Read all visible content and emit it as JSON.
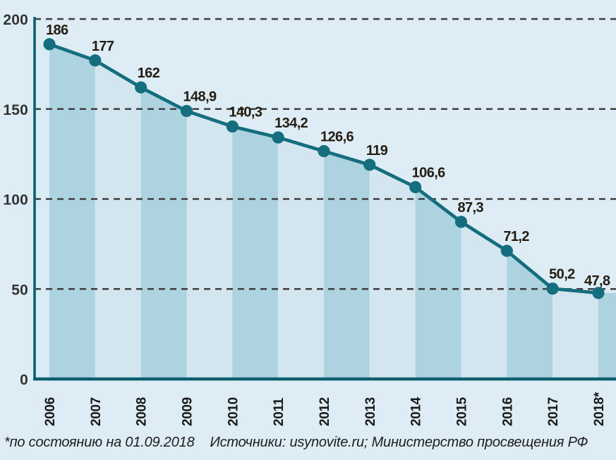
{
  "chart_data": {
    "type": "area",
    "title": "",
    "categories": [
      "2006",
      "2007",
      "2008",
      "2009",
      "2010",
      "2011",
      "2012",
      "2013",
      "2014",
      "2015",
      "2016",
      "2017",
      "2018*"
    ],
    "values": [
      186,
      177,
      162,
      148.9,
      140.3,
      134.2,
      126.6,
      119,
      106.6,
      87.3,
      71.2,
      50.2,
      47.8
    ],
    "value_labels": [
      "186",
      "177",
      "162",
      "148,9",
      "140,3",
      "134,2",
      "126,6",
      "119",
      "106,6",
      "87,3",
      "71,2",
      "50,2",
      "47,8"
    ],
    "ylim": [
      0,
      200
    ],
    "yticks": [
      0,
      50,
      100,
      150,
      200
    ],
    "ytick_labels": [
      "0",
      "50",
      "100",
      "150",
      "200"
    ],
    "grid": "dashed-horizontal",
    "legend": "none",
    "style_note": "area under line shaded as vertical bands alternating per year segment"
  },
  "footnote": {
    "note": "*по состоянию на 01.09.2018",
    "sources": "Источники: usynovite.ru; Министерство просвещения РФ"
  },
  "colors": {
    "background": "#deedf5",
    "band_dark": "#aed3e0",
    "band_light": "#d3e6ef",
    "band_edge": "#d9ebf4",
    "line": "#146e7d",
    "axis": "#0c6070",
    "grid": "#3f3f3f",
    "value_text": "#241b11",
    "year_text": "#191919",
    "tick_text": "#333333",
    "footnote_text": "#1d1d1d"
  }
}
